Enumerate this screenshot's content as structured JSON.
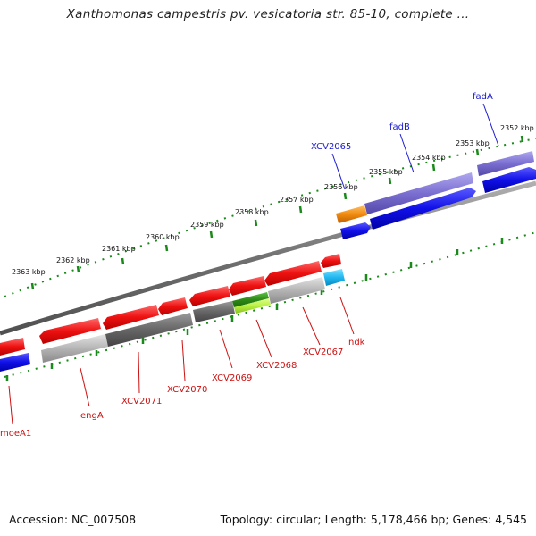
{
  "title": "Xanthomonas campestris pv. vesicatoria str. 85-10, complete ...",
  "footer": {
    "accession": "Accession: NC_007508",
    "summary": "Topology: circular; Length: 5,178,466 bp; Genes: 4,545"
  },
  "ticks": [
    "2363 kbp",
    "2362 kbp",
    "2361 kbp",
    "2360 kbp",
    "2359 kbp",
    "2358 kbp",
    "2357 kbp",
    "2356 kbp",
    "2355 kbp",
    "2354 kbp",
    "2353 kbp",
    "2352 kbp"
  ],
  "genes_top": [
    {
      "label": "XCV2065",
      "color": "#1c1cd0"
    },
    {
      "label": "fadB",
      "color": "#1c1cd0"
    },
    {
      "label": "fadA",
      "color": "#1c1cd0"
    }
  ],
  "genes_bottom": [
    {
      "label": "moeA1",
      "color": "#cc1111"
    },
    {
      "label": "engA",
      "color": "#cc1111"
    },
    {
      "label": "XCV2071",
      "color": "#cc1111"
    },
    {
      "label": "XCV2070",
      "color": "#cc1111"
    },
    {
      "label": "XCV2069",
      "color": "#cc1111"
    },
    {
      "label": "XCV2068",
      "color": "#cc1111"
    },
    {
      "label": "XCV2067",
      "color": "#cc1111"
    },
    {
      "label": "ndk",
      "color": "#cc1111"
    }
  ],
  "colors": {
    "tick": "#1a8a1a",
    "backbone": "#7a7a7a",
    "cds_forward": "#1010e0",
    "cds_reverse": "#e01010",
    "cog_purple": "#7a6fd0",
    "cog_orange": "#f08a10",
    "cog_dark_gray": "#666666",
    "cog_light_gray": "#b0b0b0",
    "cog_green": "#3a9a20",
    "cog_light_green": "#b8f040",
    "cog_cyan": "#20b8f0"
  }
}
